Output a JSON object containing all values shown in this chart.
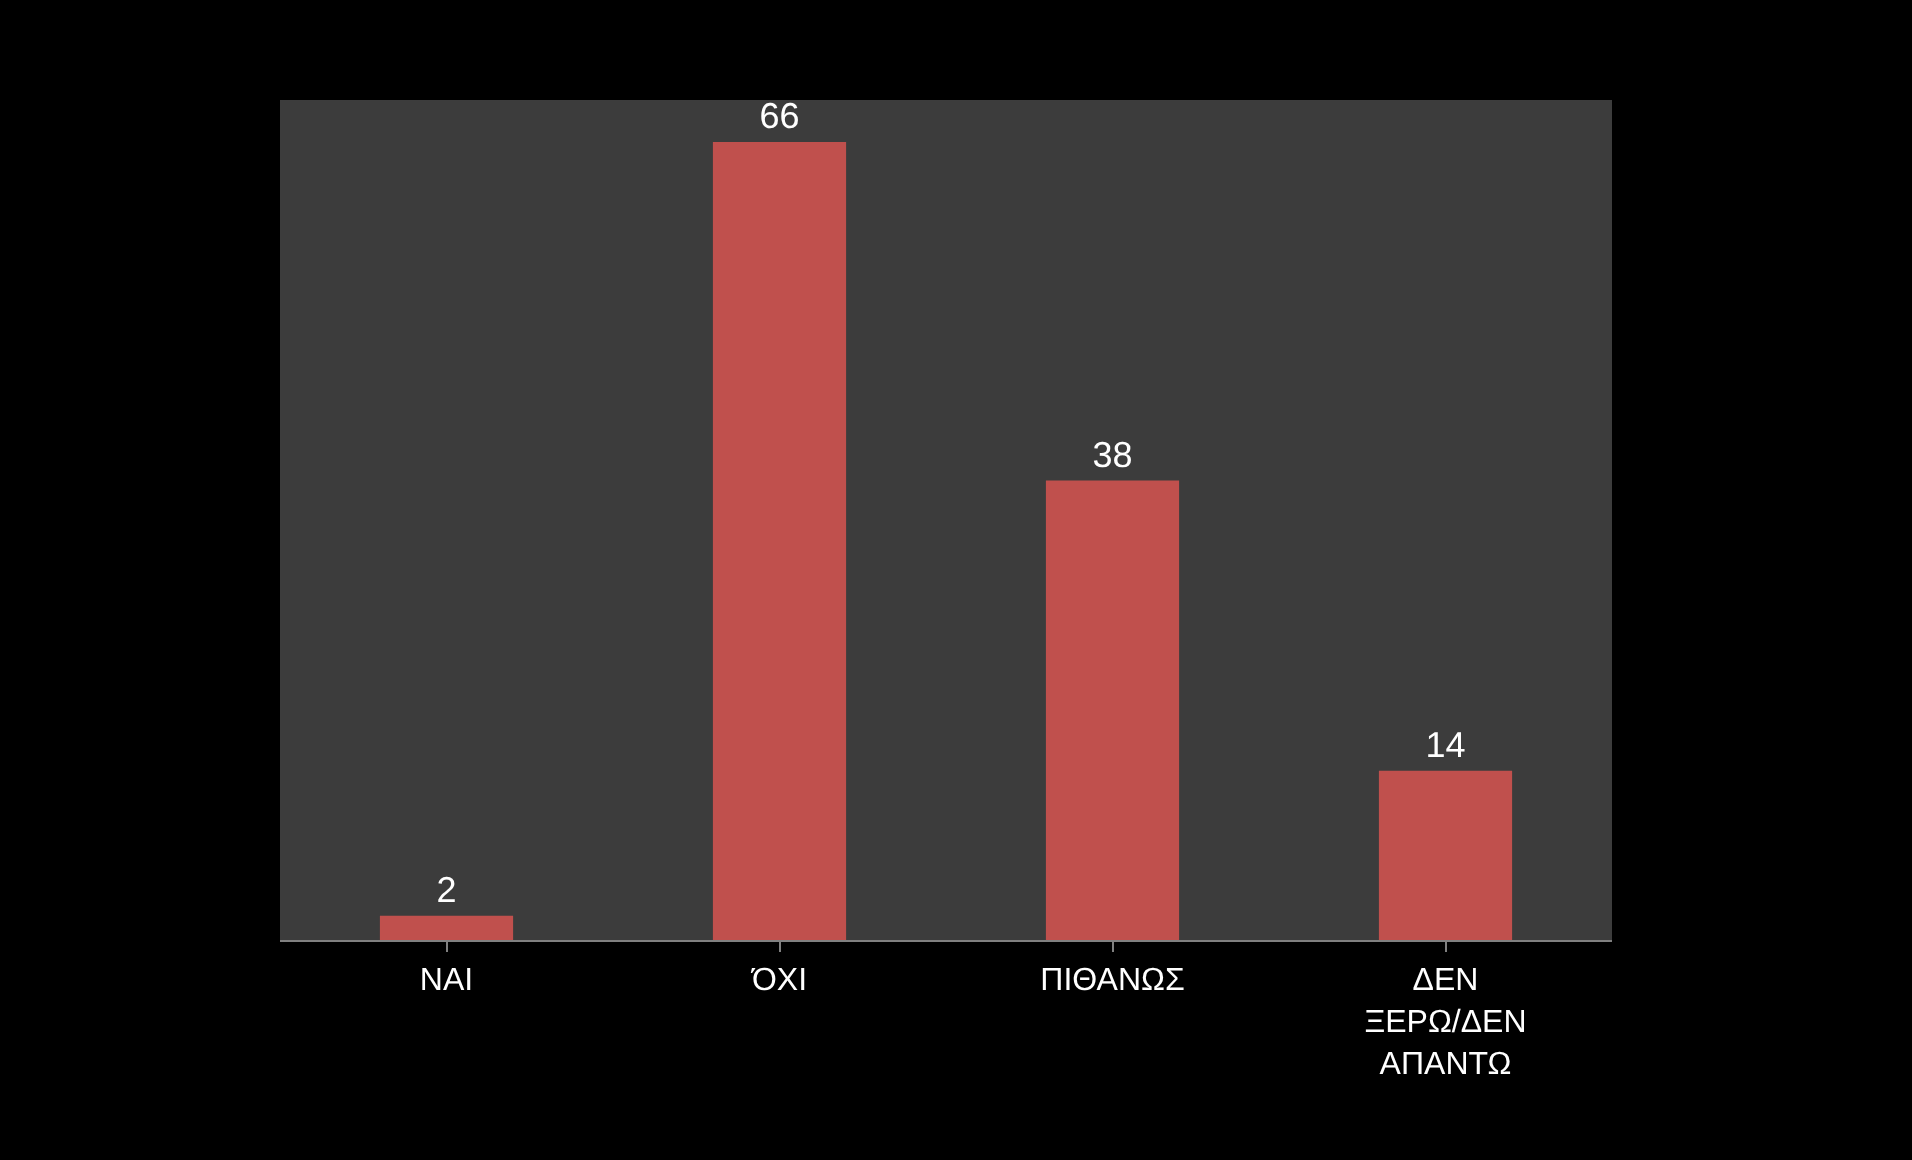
{
  "chart_data": {
    "type": "bar",
    "categories": [
      "ΝΑΙ",
      "ΌΧΙ",
      "ΠΙΘΑΝΩΣ",
      "ΔΕΝ ΞΕΡΩ/ΔΕΝ ΑΠΑΝΤΩ"
    ],
    "values": [
      2,
      66,
      38,
      14
    ],
    "color": "#c0504d",
    "data_labels": true,
    "grid": false,
    "legend": false
  }
}
